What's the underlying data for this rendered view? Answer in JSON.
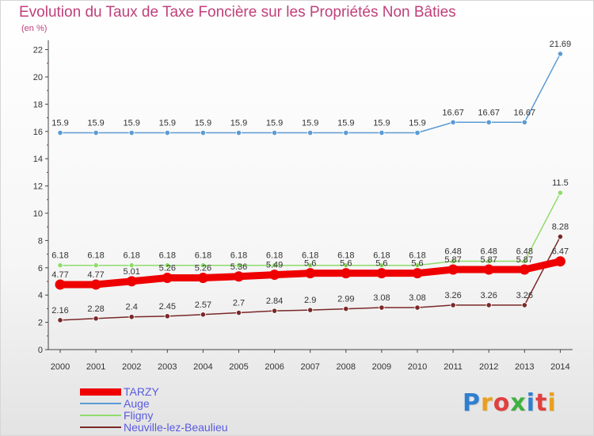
{
  "chart_data": {
    "type": "line",
    "title": "Evolution du Taux de Taxe Foncière sur les Propriétés Non Bâties",
    "ylabel": "(en %)",
    "xlabel": "",
    "x": [
      "2000",
      "2001",
      "2002",
      "2003",
      "2004",
      "2005",
      "2006",
      "2007",
      "2008",
      "2009",
      "2010",
      "2011",
      "2012",
      "2013",
      "2014"
    ],
    "yticks": [
      "0",
      "2",
      "4",
      "6",
      "8",
      "10",
      "12",
      "14",
      "16",
      "18",
      "20",
      "22"
    ],
    "ylim": [
      0,
      22
    ],
    "grid": false,
    "legend": "bottom-left",
    "series": [
      {
        "name": "Auge",
        "color": "#5b9bd5",
        "values": [
          15.9,
          15.9,
          15.9,
          15.9,
          15.9,
          15.9,
          15.9,
          15.9,
          15.9,
          15.9,
          15.9,
          16.67,
          16.67,
          16.67,
          21.69
        ],
        "labels": [
          "15.9",
          "15.9",
          "15.9",
          "15.9",
          "15.9",
          "15.9",
          "15.9",
          "15.9",
          "15.9",
          "15.9",
          "15.9",
          "16.67",
          "16.67",
          "16.67",
          "21.69"
        ]
      },
      {
        "name": "Fligny",
        "color": "#8fdc6a",
        "values": [
          6.18,
          6.18,
          6.18,
          6.18,
          6.18,
          6.18,
          6.18,
          6.18,
          6.18,
          6.18,
          6.18,
          6.48,
          6.48,
          6.48,
          11.5
        ],
        "labels": [
          "6.18",
          "6.18",
          "6.18",
          "6.18",
          "6.18",
          "6.18",
          "6.18",
          "6.18",
          "6.18",
          "6.18",
          "6.18",
          "6.48",
          "6.48",
          "6.48",
          "11.5"
        ]
      },
      {
        "name": "Neuville-lez-Beaulieu",
        "color": "#7a2828",
        "values": [
          2.16,
          2.28,
          2.4,
          2.45,
          2.57,
          2.7,
          2.84,
          2.9,
          2.99,
          3.08,
          3.08,
          3.26,
          3.26,
          3.26,
          8.28
        ],
        "labels": [
          "2.16",
          "2.28",
          "2.4",
          "2.45",
          "2.57",
          "2.7",
          "2.84",
          "2.9",
          "2.99",
          "3.08",
          "3.08",
          "3.26",
          "3.26",
          "3.26",
          "8.28"
        ]
      },
      {
        "name": "TARZY",
        "color": "#ee0000",
        "values": [
          4.77,
          4.77,
          5.01,
          5.26,
          5.26,
          5.36,
          5.49,
          5.6,
          5.6,
          5.6,
          5.6,
          5.87,
          5.87,
          5.87,
          6.47
        ],
        "labels": [
          "4.77",
          "4.77",
          "5.01",
          "5.26",
          "5.26",
          "5.36",
          "5.49",
          "5.6",
          "5.6",
          "5.6",
          "5.6",
          "5.87",
          "5.87",
          "5.87",
          "6.47"
        ]
      }
    ],
    "legend_order": [
      "TARZY",
      "Auge",
      "Fligny",
      "Neuville-lez-Beaulieu"
    ]
  },
  "logo": {
    "letters": [
      "P",
      "r",
      "o",
      "x",
      "i",
      "t",
      "i"
    ],
    "colors": [
      "#2f7fd0",
      "#e8a020",
      "#e04040",
      "#40b040",
      "#2f7fd0",
      "#e04040",
      "#e8a020"
    ]
  }
}
